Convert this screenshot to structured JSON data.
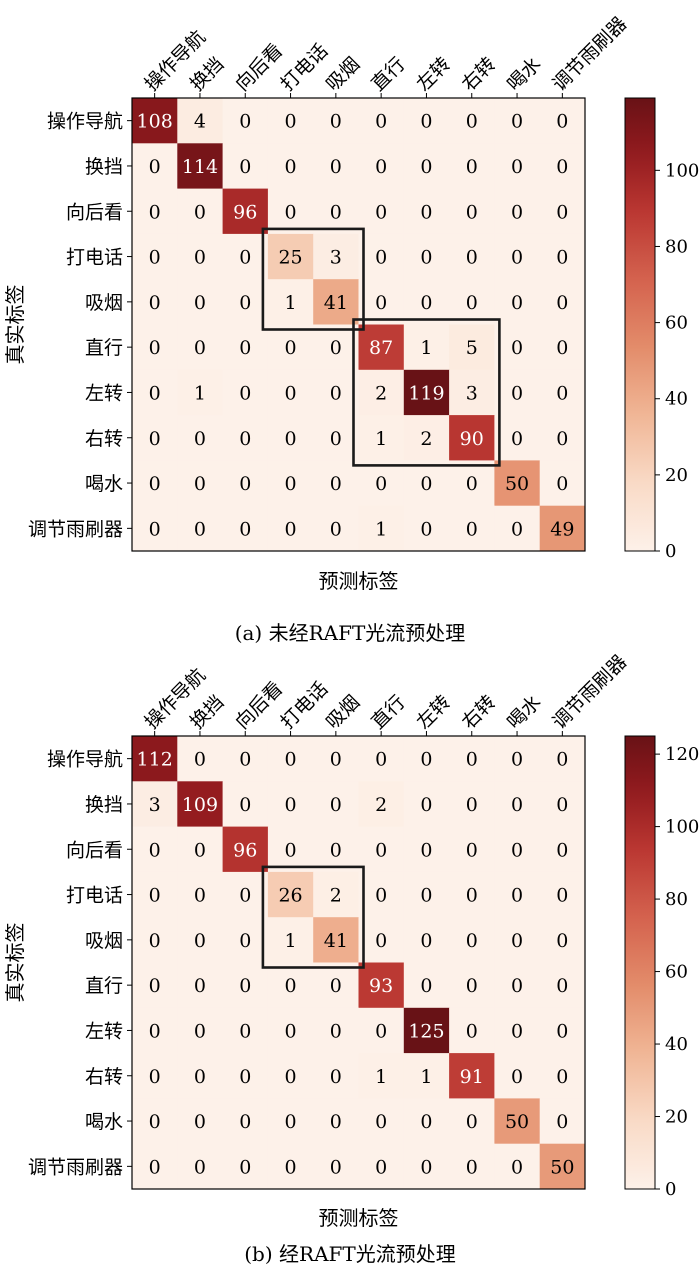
{
  "labels": [
    "操作导航",
    "换挡",
    "向后看",
    "打电话",
    "吸烟",
    "直行",
    "左转",
    "右转",
    "喝水",
    "调节雨刷器"
  ],
  "chart_data": [
    {
      "type": "heatmap",
      "caption": "(a) 未经RAFT光流预处理",
      "xlabel": "预测标签",
      "ylabel": "真实标签",
      "x_categories": [
        "操作导航",
        "换挡",
        "向后看",
        "打电话",
        "吸烟",
        "直行",
        "左转",
        "右转",
        "喝水",
        "调节雨刷器"
      ],
      "y_categories": [
        "操作导航",
        "换挡",
        "向后看",
        "打电话",
        "吸烟",
        "直行",
        "左转",
        "右转",
        "喝水",
        "调节雨刷器"
      ],
      "matrix": [
        [
          108,
          4,
          0,
          0,
          0,
          0,
          0,
          0,
          0,
          0
        ],
        [
          0,
          114,
          0,
          0,
          0,
          0,
          0,
          0,
          0,
          0
        ],
        [
          0,
          0,
          96,
          0,
          0,
          0,
          0,
          0,
          0,
          0
        ],
        [
          0,
          0,
          0,
          25,
          3,
          0,
          0,
          0,
          0,
          0
        ],
        [
          0,
          0,
          0,
          1,
          41,
          0,
          0,
          0,
          0,
          0
        ],
        [
          0,
          0,
          0,
          0,
          0,
          87,
          1,
          5,
          0,
          0
        ],
        [
          0,
          1,
          0,
          0,
          0,
          2,
          119,
          3,
          0,
          0
        ],
        [
          0,
          0,
          0,
          0,
          0,
          1,
          2,
          90,
          0,
          0
        ],
        [
          0,
          0,
          0,
          0,
          0,
          0,
          0,
          0,
          50,
          0
        ],
        [
          0,
          0,
          0,
          0,
          0,
          1,
          0,
          0,
          0,
          49
        ]
      ],
      "vmin": 0,
      "vmax": 119,
      "colorbar_ticks": [
        0,
        20,
        40,
        60,
        80,
        100
      ],
      "highlight_boxes": [
        {
          "rows": [
            3,
            4
          ],
          "cols": [
            3,
            4
          ]
        },
        {
          "rows": [
            5,
            7
          ],
          "cols": [
            5,
            7
          ]
        }
      ]
    },
    {
      "type": "heatmap",
      "caption": "(b) 经RAFT光流预处理",
      "xlabel": "预测标签",
      "ylabel": "真实标签",
      "x_categories": [
        "操作导航",
        "换挡",
        "向后看",
        "打电话",
        "吸烟",
        "直行",
        "左转",
        "右转",
        "喝水",
        "调节雨刷器"
      ],
      "y_categories": [
        "操作导航",
        "换挡",
        "向后看",
        "打电话",
        "吸烟",
        "直行",
        "左转",
        "右转",
        "喝水",
        "调节雨刷器"
      ],
      "matrix": [
        [
          112,
          0,
          0,
          0,
          0,
          0,
          0,
          0,
          0,
          0
        ],
        [
          3,
          109,
          0,
          0,
          0,
          2,
          0,
          0,
          0,
          0
        ],
        [
          0,
          0,
          96,
          0,
          0,
          0,
          0,
          0,
          0,
          0
        ],
        [
          0,
          0,
          0,
          26,
          2,
          0,
          0,
          0,
          0,
          0
        ],
        [
          0,
          0,
          0,
          1,
          41,
          0,
          0,
          0,
          0,
          0
        ],
        [
          0,
          0,
          0,
          0,
          0,
          93,
          0,
          0,
          0,
          0
        ],
        [
          0,
          0,
          0,
          0,
          0,
          0,
          125,
          0,
          0,
          0
        ],
        [
          0,
          0,
          0,
          0,
          0,
          1,
          1,
          91,
          0,
          0
        ],
        [
          0,
          0,
          0,
          0,
          0,
          0,
          0,
          0,
          50,
          0
        ],
        [
          0,
          0,
          0,
          0,
          0,
          0,
          0,
          0,
          0,
          50
        ]
      ],
      "vmin": 0,
      "vmax": 125,
      "colorbar_ticks": [
        0,
        20,
        40,
        60,
        80,
        100,
        120
      ],
      "highlight_boxes": [
        {
          "rows": [
            3,
            4
          ],
          "cols": [
            3,
            4
          ]
        }
      ]
    }
  ]
}
